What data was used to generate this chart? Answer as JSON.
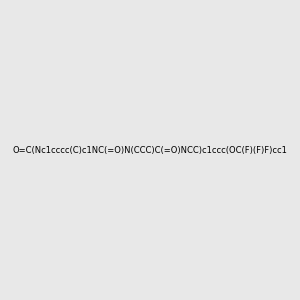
{
  "smiles": "O=C(Nc1cccc(C)c1NC(=O)N(CCC)C(=O)NCC)c1ccc(OC(F)(F)F)cc1",
  "image_size": 300,
  "background_color": "#e8e8e8",
  "title": ""
}
